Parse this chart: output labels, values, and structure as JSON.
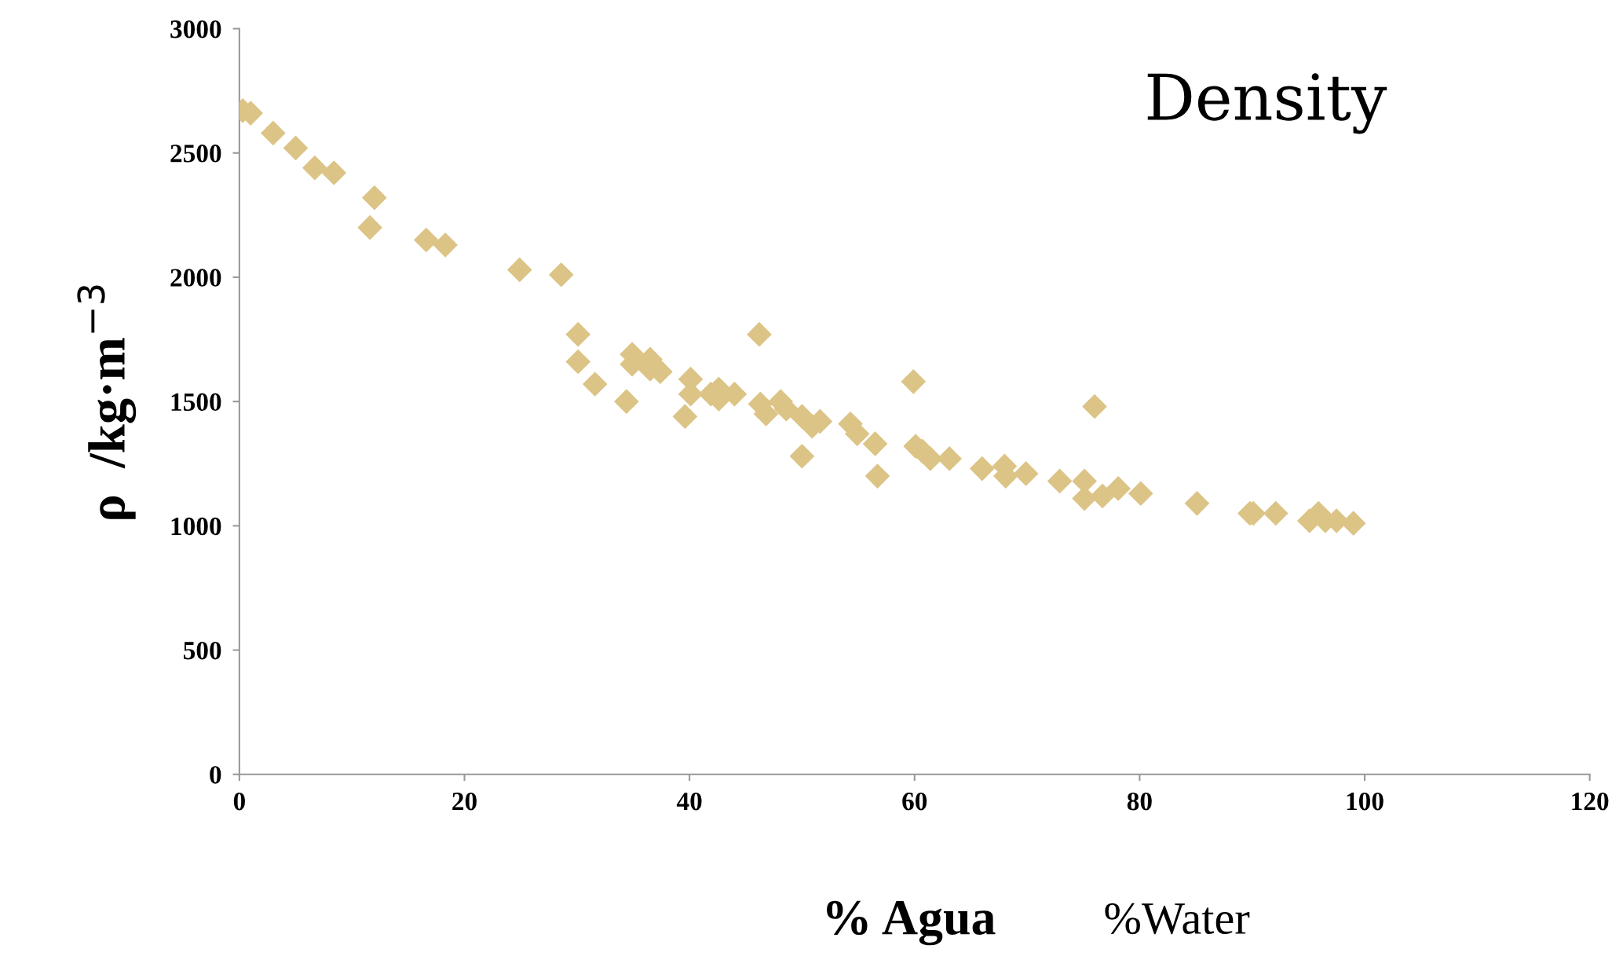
{
  "chart_data": {
    "type": "scatter",
    "title": "Density",
    "xlabel": "% Agua",
    "ylabel": "ρ  /kg·m$^{−3}$",
    "annotations": [
      "%Water"
    ],
    "marker": "diamond",
    "grid": false,
    "legend": false,
    "xlim": [
      0,
      120
    ],
    "xticks": [
      0,
      20,
      40,
      60,
      80,
      100,
      120
    ],
    "ylim": [
      0,
      3000
    ],
    "yticks": [
      0,
      500,
      1000,
      1500,
      2000,
      2500,
      3000
    ],
    "series": [
      {
        "color": "#dcc486",
        "x": [
          0.3,
          1.0,
          3.0,
          5.0,
          6.7,
          8.4,
          11.6,
          12.0,
          16.6,
          18.3,
          24.9,
          28.6,
          30.1,
          30.1,
          31.6,
          34.4,
          34.9,
          34.9,
          36.5,
          36.5,
          37.4,
          39.6,
          40.1,
          40.1,
          41.9,
          42.6,
          42.6,
          44.0,
          46.2,
          46.3,
          46.8,
          48.1,
          48.6,
          50.0,
          50.0,
          50.9,
          51.6,
          54.3,
          54.9,
          56.5,
          56.7,
          59.9,
          60.1,
          60.7,
          61.4,
          63.1,
          66.0,
          68.0,
          68.1,
          69.9,
          72.9,
          75.1,
          75.1,
          76.0,
          76.7,
          78.1,
          80.1,
          85.1,
          89.8,
          90.1,
          92.1,
          95.1,
          95.9,
          96.5,
          97.5,
          99.0
        ],
        "values": [
          2670,
          2660,
          2580,
          2520,
          2440,
          2420,
          2200,
          2320,
          2150,
          2130,
          2030,
          2010,
          1770,
          1660,
          1570,
          1500,
          1690,
          1650,
          1670,
          1630,
          1620,
          1440,
          1590,
          1530,
          1530,
          1550,
          1510,
          1530,
          1770,
          1490,
          1450,
          1500,
          1470,
          1440,
          1280,
          1400,
          1420,
          1410,
          1370,
          1330,
          1200,
          1580,
          1320,
          1300,
          1270,
          1270,
          1230,
          1240,
          1200,
          1210,
          1180,
          1180,
          1110,
          1480,
          1120,
          1150,
          1130,
          1090,
          1050,
          1050,
          1050,
          1020,
          1050,
          1020,
          1020,
          1010
        ]
      }
    ]
  }
}
